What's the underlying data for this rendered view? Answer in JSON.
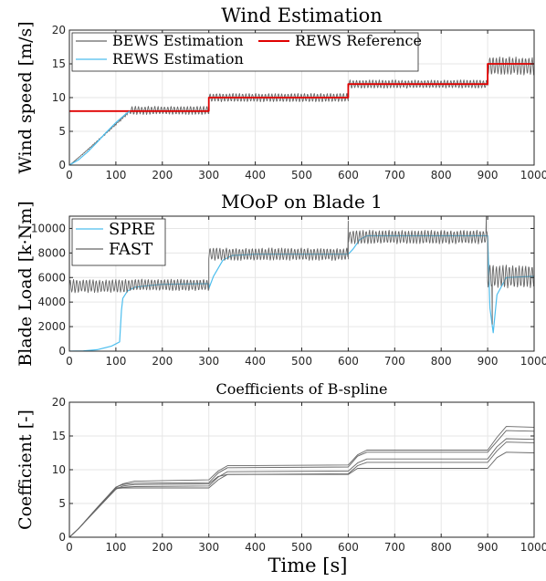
{
  "colors": {
    "gray_series": "#666666",
    "blue_series": "#4DBEEE",
    "red_series": "#E00000",
    "grid": "#e6e6e6",
    "axis": "#262626"
  },
  "xlabel": "Time [s]",
  "chart_data": [
    {
      "type": "line",
      "title": "Wind Estimation",
      "ylabel": "Wind speed [m/s]",
      "xlim": [
        0,
        1000
      ],
      "ylim": [
        0,
        20
      ],
      "xticks": [
        0,
        100,
        200,
        300,
        400,
        500,
        600,
        700,
        800,
        900,
        1000
      ],
      "yticks": [
        0,
        5,
        10,
        15,
        20
      ],
      "grid": true,
      "legend_position": "top-left",
      "legend": [
        "BEWS Estimation",
        "REWS Reference",
        "REWS Estimation"
      ],
      "series": [
        {
          "name": "BEWS Estimation",
          "color": "gray",
          "kind": "oscillating",
          "ramp_end": [
            130,
            8
          ],
          "segments": [
            {
              "from": 130,
              "to": 300,
              "mean": 8.1,
              "amp": 0.55,
              "period": 7
            },
            {
              "from": 300,
              "to": 600,
              "mean": 10.0,
              "amp": 0.55,
              "period": 7
            },
            {
              "from": 600,
              "to": 900,
              "mean": 12.0,
              "amp": 0.55,
              "period": 7
            },
            {
              "from": 900,
              "to": 1000,
              "mean": 14.7,
              "amp": 1.2,
              "period": 7
            }
          ]
        },
        {
          "name": "REWS Reference",
          "color": "red",
          "x": [
            0,
            300,
            300,
            600,
            600,
            900,
            900,
            1000
          ],
          "y": [
            8,
            8,
            10,
            10,
            12,
            12,
            15,
            15
          ]
        },
        {
          "name": "REWS Estimation",
          "color": "blue",
          "x": [
            0,
            20,
            40,
            60,
            80,
            100,
            120,
            130
          ],
          "y": [
            0,
            0.8,
            2.0,
            3.4,
            4.9,
            6.3,
            7.5,
            8.0
          ]
        }
      ]
    },
    {
      "type": "line",
      "title": "MOoP on Blade 1",
      "ylabel": "Blade Load [k·Nm]",
      "xlim": [
        0,
        1000
      ],
      "ylim": [
        0,
        11000
      ],
      "xticks": [
        0,
        100,
        200,
        300,
        400,
        500,
        600,
        700,
        800,
        900,
        1000
      ],
      "yticks": [
        0,
        2000,
        4000,
        6000,
        8000,
        10000
      ],
      "grid": true,
      "legend_position": "top-left",
      "legend": [
        "SPRE",
        "FAST"
      ],
      "series": [
        {
          "name": "SPRE",
          "color": "blue",
          "x": [
            0,
            30,
            60,
            90,
            108,
            112,
            115,
            125,
            140,
            160,
            200,
            300,
            300,
            310,
            330,
            350,
            400,
            600,
            610,
            625,
            640,
            700,
            900,
            905,
            912,
            920,
            940,
            1000
          ],
          "y": [
            0,
            20,
            120,
            400,
            750,
            3300,
            4300,
            4900,
            5200,
            5300,
            5450,
            5500,
            5100,
            6100,
            7400,
            7800,
            7900,
            7900,
            8300,
            9100,
            9400,
            9400,
            9400,
            3500,
            1500,
            4600,
            6000,
            6100
          ]
        },
        {
          "name": "FAST",
          "color": "gray",
          "kind": "oscillating",
          "segments": [
            {
              "from": 0,
              "to": 130,
              "mean": 5300,
              "amp": 480,
              "period": 7
            },
            {
              "from": 130,
              "to": 300,
              "mean": 5400,
              "amp": 420,
              "period": 7
            },
            {
              "from": 300,
              "to": 600,
              "mean": 7900,
              "amp": 450,
              "period": 7
            },
            {
              "from": 600,
              "to": 900,
              "mean": 9300,
              "amp": 500,
              "period": 7
            },
            {
              "from": 900,
              "to": 1000,
              "mean": 6100,
              "amp": 850,
              "period": 7
            }
          ],
          "spikes": [
            [
              600,
              10600
            ],
            [
              897,
              11000
            ],
            [
              910,
              2200
            ]
          ]
        }
      ]
    },
    {
      "type": "line",
      "title": "Coefficients of B-spline",
      "ylabel": "Coefficient [-]",
      "xlim": [
        0,
        1000
      ],
      "ylim": [
        0,
        20
      ],
      "xticks": [
        0,
        100,
        200,
        300,
        400,
        500,
        600,
        700,
        800,
        900,
        1000
      ],
      "yticks": [
        0,
        5,
        10,
        15,
        20
      ],
      "grid": true,
      "series": [
        {
          "color": "gray",
          "x": [
            0,
            20,
            60,
            100,
            115,
            140,
            300,
            320,
            340,
            600,
            620,
            640,
            900,
            920,
            940,
            1000
          ],
          "y": [
            0,
            1.3,
            4.4,
            7.4,
            7.9,
            8.3,
            8.5,
            9.8,
            10.6,
            10.7,
            12.2,
            12.9,
            12.9,
            14.8,
            16.4,
            16.3
          ]
        },
        {
          "color": "gray",
          "x": [
            0,
            20,
            60,
            100,
            115,
            140,
            300,
            320,
            340,
            600,
            620,
            640,
            900,
            920,
            940,
            1000
          ],
          "y": [
            0,
            1.3,
            4.4,
            7.4,
            7.8,
            8.0,
            8.1,
            9.5,
            10.3,
            10.4,
            12.0,
            12.6,
            12.6,
            14.2,
            15.8,
            15.7
          ]
        },
        {
          "color": "gray",
          "x": [
            0,
            20,
            60,
            100,
            115,
            140,
            300,
            320,
            340,
            600,
            620,
            640,
            900,
            920,
            940,
            1000
          ],
          "y": [
            0,
            1.3,
            4.3,
            7.3,
            7.4,
            7.5,
            7.6,
            8.9,
            9.7,
            9.8,
            11.0,
            11.6,
            11.6,
            13.4,
            14.6,
            14.5
          ]
        },
        {
          "color": "gray",
          "x": [
            0,
            20,
            60,
            100,
            115,
            140,
            300,
            320,
            340,
            600,
            620,
            640,
            900,
            920,
            940,
            1000
          ],
          "y": [
            0,
            1.3,
            4.3,
            7.2,
            7.3,
            7.3,
            7.3,
            8.5,
            9.3,
            9.4,
            10.6,
            11.1,
            11.1,
            12.8,
            14.1,
            14.0
          ]
        },
        {
          "color": "gray",
          "x": [
            0,
            20,
            60,
            100,
            115,
            140,
            300,
            320,
            340,
            600,
            620,
            640,
            900,
            920,
            940,
            1000
          ],
          "y": [
            0,
            1.3,
            4.2,
            7.1,
            7.6,
            7.8,
            7.9,
            9.0,
            9.3,
            9.3,
            10.2,
            10.2,
            10.2,
            11.8,
            12.6,
            12.5
          ]
        }
      ]
    }
  ]
}
